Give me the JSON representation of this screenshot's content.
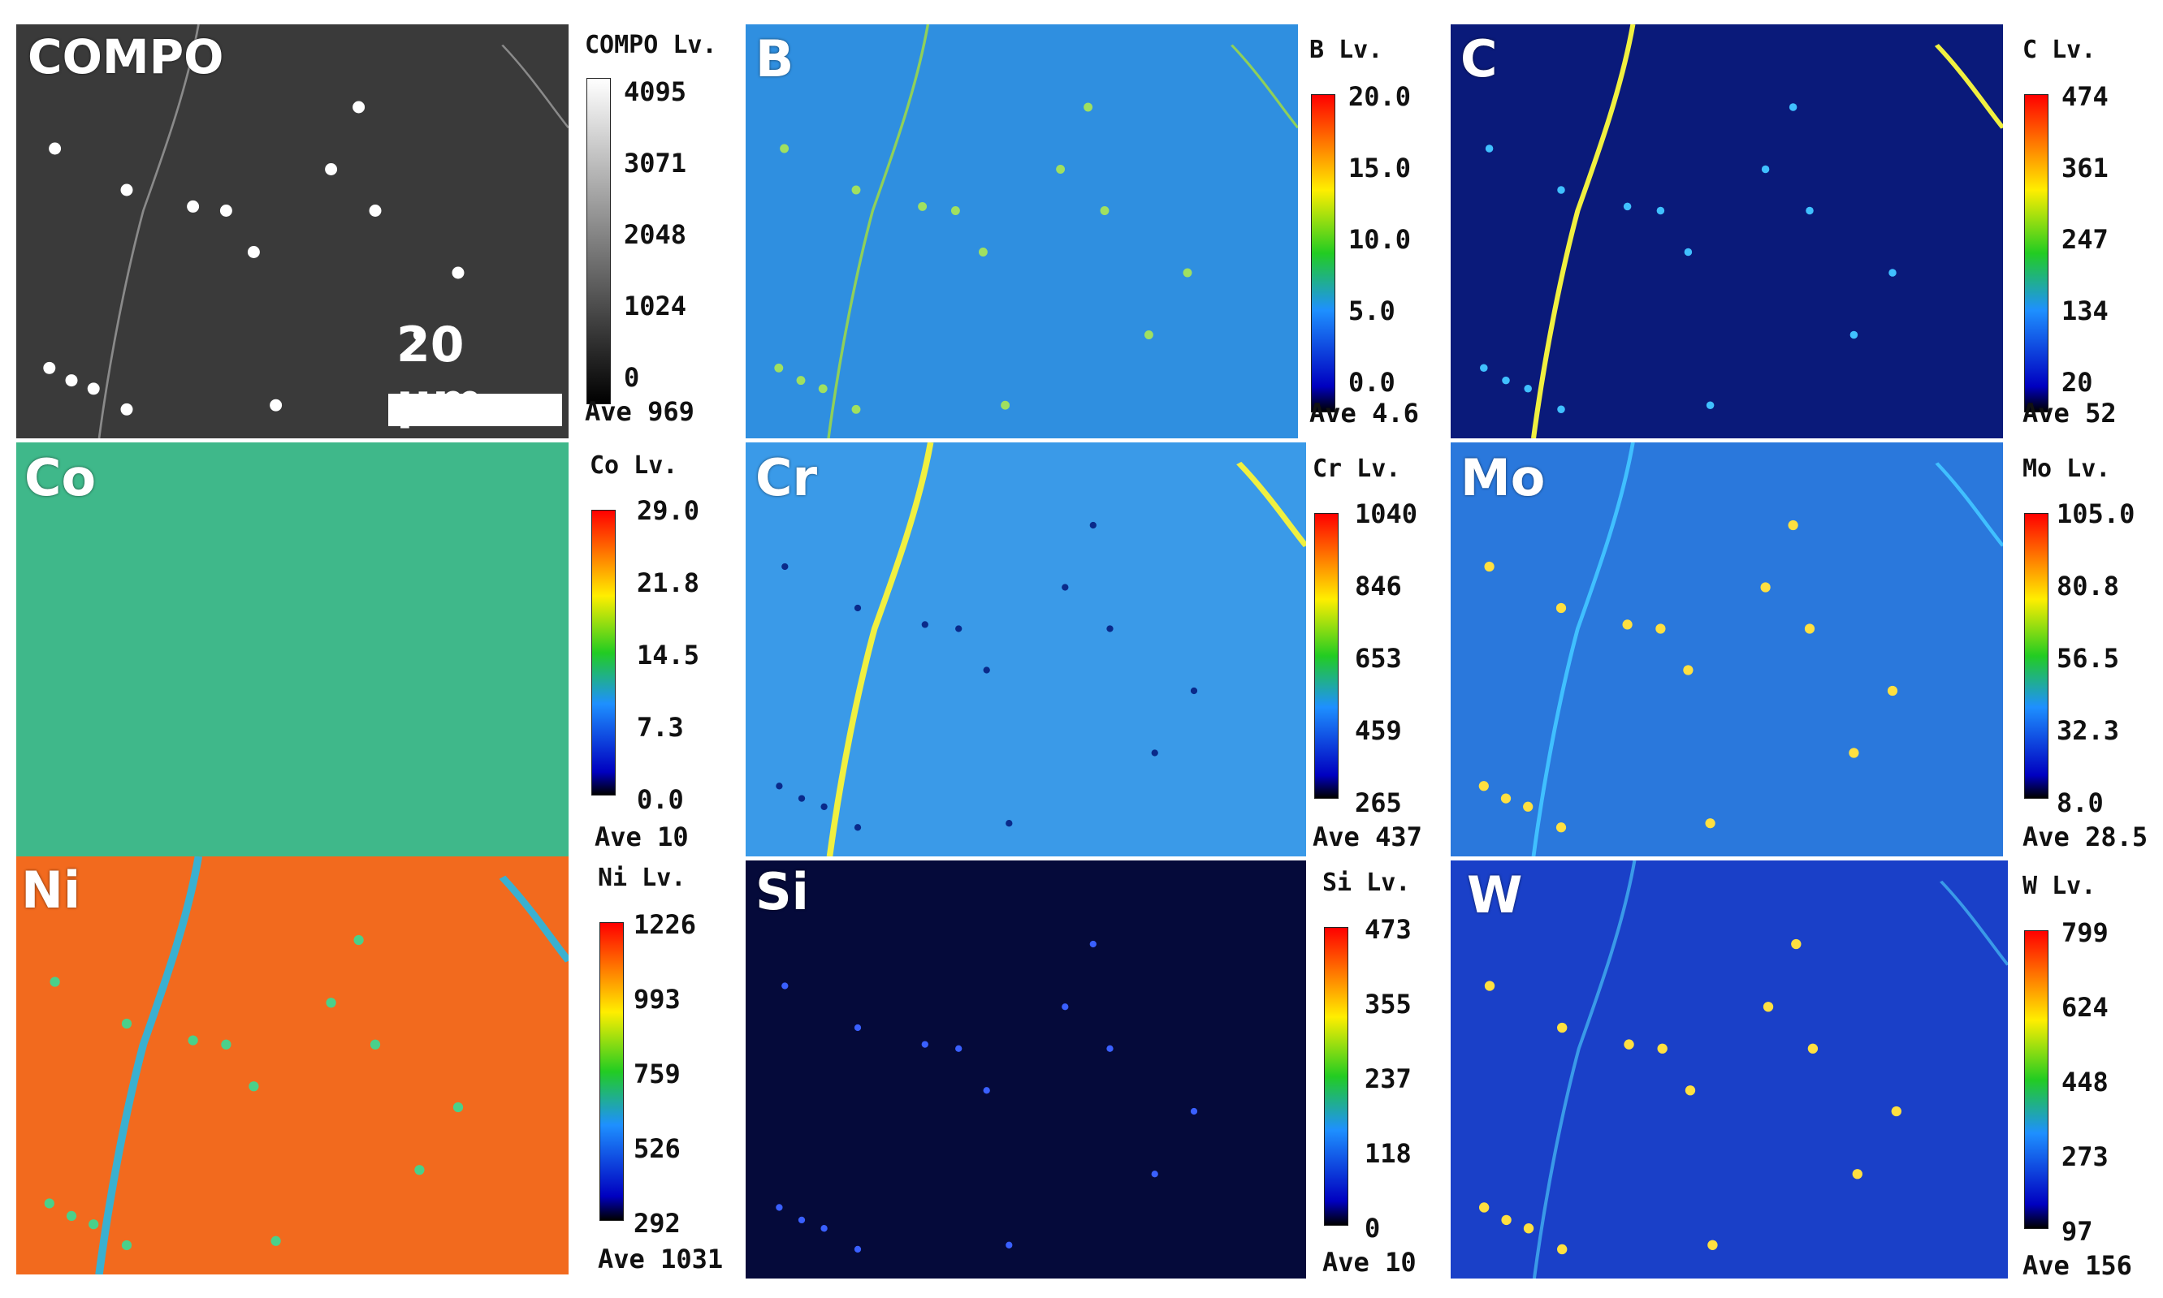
{
  "panels": [
    {
      "id": "compo",
      "label": "COMPO",
      "lv_title": "COMPO Lv.",
      "ticks": [
        "4095",
        "3071",
        "2048",
        "1024",
        "0"
      ],
      "ave": "Ave 969",
      "palette": "gray",
      "background": "#3a3a3a",
      "scale_bar": "20 μm"
    },
    {
      "id": "b",
      "label": "B",
      "lv_title": "B Lv.",
      "ticks": [
        "20.0",
        "15.0",
        "10.0",
        "5.0",
        "0.0"
      ],
      "ave": "Ave 4.6",
      "palette": "jet",
      "background": "#2f8fe0"
    },
    {
      "id": "c",
      "label": "C",
      "lv_title": "C Lv.",
      "ticks": [
        "474",
        "361",
        "247",
        "134",
        "20"
      ],
      "ave": "Ave 52",
      "palette": "jet",
      "background": "#0a1a7a"
    },
    {
      "id": "co",
      "label": "Co",
      "lv_title": "Co Lv.",
      "ticks": [
        "29.0",
        "21.8",
        "14.5",
        "7.3",
        "0.0"
      ],
      "ave": "Ave 10",
      "palette": "jet",
      "background": "#3fb88a"
    },
    {
      "id": "cr",
      "label": "Cr",
      "lv_title": "Cr Lv.",
      "ticks": [
        "1040",
        "846",
        "653",
        "459",
        "265"
      ],
      "ave": "Ave 437",
      "palette": "jet",
      "background": "#3a9ae8"
    },
    {
      "id": "mo",
      "label": "Mo",
      "lv_title": "Mo Lv.",
      "ticks": [
        "105.0",
        "80.8",
        "56.5",
        "32.3",
        "8.0"
      ],
      "ave": "Ave 28.5",
      "palette": "jet",
      "background": "#2a78dc"
    },
    {
      "id": "ni",
      "label": "Ni",
      "lv_title": "Ni Lv.",
      "ticks": [
        "1226",
        "993",
        "759",
        "526",
        "292"
      ],
      "ave": "Ave 1031",
      "palette": "jet",
      "background": "#f26a1e"
    },
    {
      "id": "si",
      "label": "Si",
      "lv_title": "Si Lv.",
      "ticks": [
        "473",
        "355",
        "237",
        "118",
        "0"
      ],
      "ave": "Ave 10",
      "palette": "jet",
      "background": "#050a3a"
    },
    {
      "id": "w",
      "label": "W",
      "lv_title": "W Lv.",
      "ticks": [
        "799",
        "624",
        "448",
        "273",
        "97"
      ],
      "ave": "Ave 156",
      "palette": "jet",
      "background": "#1a40c8"
    }
  ],
  "colors": {
    "jet_top": "#ff0000",
    "jet_upper": "#ffee00",
    "jet_mid": "#22cc22",
    "jet_lower": "#1e90ff",
    "jet_low": "#0000c0",
    "jet_bottom": "#000000",
    "boundary": "#f0f040",
    "particle": "#ffe040"
  }
}
